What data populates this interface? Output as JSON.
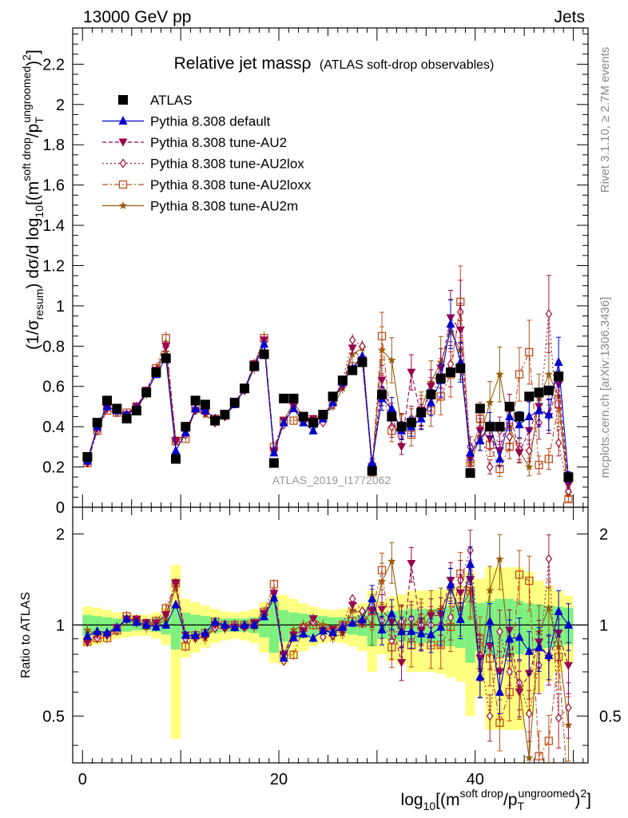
{
  "header": {
    "left": "13000 GeV pp",
    "right": "Jets"
  },
  "side_text": {
    "rivet": "Rivet 3.1.10, ≥ 2.7M events",
    "mcplots": "mcplots.cern.ch [arXiv:1306.3436]"
  },
  "colors": {
    "atlas": "#000000",
    "default": "#0000cc",
    "au2": "#99004d",
    "au2lox": "#a31d3a",
    "au2loxx": "#bf4d1a",
    "au2m": "#995c0d",
    "band_inner": "#7ff07f",
    "band_outer": "#ffff80"
  },
  "chart_data": {
    "type": "scatter",
    "title": "Relative jet massρ",
    "subtitle": "(ATLAS soft-drop observables)",
    "analysis_label": "ATLAS_2019_I1772062",
    "ylabel": "(1/σ_resum) dσ/d log10[(m^soft drop/pT^ungroomed)^2]",
    "xlabel": "log10[(m^soft drop/pT^ungroomed)^2]",
    "ratio_ylabel": "Ratio to ATLAS",
    "xlim": [
      -1,
      51.5
    ],
    "ylim": [
      0,
      2.38
    ],
    "ratio_ylim": [
      0.35,
      2.45
    ],
    "xticks": [
      0,
      20,
      40
    ],
    "yticks": [
      0,
      0.2,
      0.4,
      0.6,
      0.8,
      1,
      1.2,
      1.4,
      1.6,
      1.8,
      2,
      2.2
    ],
    "ratio_yticks": [
      0.5,
      1,
      2
    ],
    "legend_position": "top-left",
    "series": [
      {
        "name": "ATLAS",
        "marker": "square",
        "x": [
          0.5,
          1.5,
          2.5,
          3.5,
          4.5,
          5.5,
          6.5,
          7.5,
          8.5,
          9.5,
          10.5,
          11.5,
          12.5,
          13.5,
          14.5,
          15.5,
          16.5,
          17.5,
          18.5,
          19.5,
          20.5,
          21.5,
          22.5,
          23.5,
          24.5,
          25.5,
          26.5,
          27.5,
          28.5,
          29.5,
          30.5,
          31.5,
          32.5,
          33.5,
          34.5,
          35.5,
          36.5,
          37.5,
          38.5,
          39.5,
          40.5,
          41.5,
          42.5,
          43.5,
          44.5,
          45.5,
          46.5,
          47.5,
          48.5,
          49.5
        ],
        "y": [
          0.25,
          0.42,
          0.53,
          0.49,
          0.44,
          0.48,
          0.57,
          0.67,
          0.74,
          0.24,
          0.4,
          0.53,
          0.51,
          0.43,
          0.46,
          0.52,
          0.59,
          0.7,
          0.76,
          0.22,
          0.54,
          0.54,
          0.45,
          0.42,
          0.46,
          0.55,
          0.63,
          0.68,
          0.72,
          0.18,
          0.56,
          0.45,
          0.4,
          0.42,
          0.47,
          0.56,
          0.64,
          0.67,
          0.69,
          0.17,
          0.49,
          0.4,
          0.4,
          0.5,
          0.45,
          0.55,
          0.57,
          0.58,
          0.65,
          0.15
        ]
      },
      {
        "name": "Pythia 8.308 default",
        "marker": "triangle",
        "x": [
          0.5,
          1.5,
          2.5,
          3.5,
          4.5,
          5.5,
          6.5,
          7.5,
          8.5,
          9.5,
          10.5,
          11.5,
          12.5,
          13.5,
          14.5,
          15.5,
          16.5,
          17.5,
          18.5,
          19.5,
          20.5,
          21.5,
          22.5,
          23.5,
          24.5,
          25.5,
          26.5,
          27.5,
          28.5,
          29.5,
          30.5,
          31.5,
          32.5,
          33.5,
          34.5,
          35.5,
          36.5,
          37.5,
          38.5,
          39.5,
          40.5,
          41.5,
          42.5,
          43.5,
          44.5,
          45.5,
          46.5,
          47.5,
          48.5,
          49.5
        ],
        "y": [
          0.23,
          0.4,
          0.5,
          0.48,
          0.46,
          0.49,
          0.57,
          0.66,
          0.74,
          0.28,
          0.37,
          0.49,
          0.48,
          0.44,
          0.46,
          0.51,
          0.59,
          0.7,
          0.81,
          0.27,
          0.42,
          0.49,
          0.42,
          0.38,
          0.44,
          0.52,
          0.62,
          0.69,
          0.75,
          0.22,
          0.54,
          0.49,
          0.38,
          0.4,
          0.44,
          0.52,
          0.63,
          0.91,
          0.72,
          0.27,
          0.33,
          0.41,
          0.24,
          0.45,
          0.41,
          0.45,
          0.48,
          0.46,
          0.72,
          0.15
        ]
      },
      {
        "name": "Pythia 8.308 tune-AU2",
        "marker": "triangle-down",
        "x": [
          0.5,
          1.5,
          2.5,
          3.5,
          4.5,
          5.5,
          6.5,
          7.5,
          8.5,
          9.5,
          10.5,
          11.5,
          12.5,
          13.5,
          14.5,
          15.5,
          16.5,
          17.5,
          18.5,
          19.5,
          20.5,
          21.5,
          22.5,
          23.5,
          24.5,
          25.5,
          26.5,
          27.5,
          28.5,
          29.5,
          30.5,
          31.5,
          32.5,
          33.5,
          34.5,
          35.5,
          36.5,
          37.5,
          38.5,
          39.5,
          40.5,
          41.5,
          42.5,
          43.5,
          44.5,
          45.5,
          46.5,
          47.5,
          48.5,
          49.5
        ],
        "y": [
          0.22,
          0.39,
          0.49,
          0.48,
          0.46,
          0.5,
          0.58,
          0.68,
          0.8,
          0.33,
          0.37,
          0.48,
          0.47,
          0.43,
          0.45,
          0.51,
          0.58,
          0.71,
          0.83,
          0.28,
          0.43,
          0.5,
          0.43,
          0.44,
          0.44,
          0.53,
          0.6,
          0.79,
          0.73,
          0.2,
          0.63,
          0.46,
          0.3,
          0.67,
          0.45,
          0.6,
          0.69,
          0.94,
          0.88,
          0.24,
          0.38,
          0.34,
          0.28,
          0.48,
          0.27,
          0.38,
          0.5,
          0.45,
          0.61,
          0.11
        ]
      },
      {
        "name": "Pythia 8.308 tune-AU2lox",
        "marker": "diamond-open",
        "x": [
          0.5,
          1.5,
          2.5,
          3.5,
          4.5,
          5.5,
          6.5,
          7.5,
          8.5,
          9.5,
          10.5,
          11.5,
          12.5,
          13.5,
          14.5,
          15.5,
          16.5,
          17.5,
          18.5,
          19.5,
          20.5,
          21.5,
          22.5,
          23.5,
          24.5,
          25.5,
          26.5,
          27.5,
          28.5,
          29.5,
          30.5,
          31.5,
          32.5,
          33.5,
          34.5,
          35.5,
          36.5,
          37.5,
          38.5,
          39.5,
          40.5,
          41.5,
          42.5,
          43.5,
          44.5,
          45.5,
          46.5,
          47.5,
          48.5,
          49.5
        ],
        "y": [
          0.22,
          0.38,
          0.49,
          0.47,
          0.46,
          0.5,
          0.57,
          0.67,
          0.8,
          0.33,
          0.36,
          0.48,
          0.47,
          0.42,
          0.45,
          0.52,
          0.58,
          0.7,
          0.82,
          0.28,
          0.41,
          0.5,
          0.44,
          0.43,
          0.42,
          0.51,
          0.63,
          0.83,
          0.8,
          0.21,
          0.58,
          0.4,
          0.41,
          0.44,
          0.47,
          0.56,
          0.64,
          0.71,
          0.97,
          0.3,
          0.39,
          0.2,
          0.38,
          0.35,
          0.29,
          0.28,
          0.42,
          0.96,
          0.32,
          0.08
        ]
      },
      {
        "name": "Pythia 8.308 tune-AU2loxx",
        "marker": "square-open",
        "x": [
          0.5,
          1.5,
          2.5,
          3.5,
          4.5,
          5.5,
          6.5,
          7.5,
          8.5,
          9.5,
          10.5,
          11.5,
          12.5,
          13.5,
          14.5,
          15.5,
          16.5,
          17.5,
          18.5,
          19.5,
          20.5,
          21.5,
          22.5,
          23.5,
          24.5,
          25.5,
          26.5,
          27.5,
          28.5,
          29.5,
          30.5,
          31.5,
          32.5,
          33.5,
          34.5,
          35.5,
          36.5,
          37.5,
          38.5,
          39.5,
          40.5,
          41.5,
          42.5,
          43.5,
          44.5,
          45.5,
          46.5,
          47.5,
          48.5,
          49.5
        ],
        "y": [
          0.22,
          0.38,
          0.48,
          0.47,
          0.47,
          0.5,
          0.57,
          0.69,
          0.84,
          0.33,
          0.34,
          0.49,
          0.48,
          0.44,
          0.46,
          0.52,
          0.59,
          0.71,
          0.84,
          0.3,
          0.43,
          0.43,
          0.44,
          0.42,
          0.45,
          0.53,
          0.63,
          0.7,
          0.73,
          0.2,
          0.85,
          0.38,
          0.4,
          0.36,
          0.48,
          0.48,
          0.55,
          0.66,
          1.02,
          0.22,
          0.44,
          0.31,
          0.19,
          0.3,
          0.66,
          0.77,
          0.21,
          0.24,
          0.51,
          0.04
        ]
      },
      {
        "name": "Pythia 8.308 tune-AU2m",
        "marker": "star",
        "x": [
          0.5,
          1.5,
          2.5,
          3.5,
          4.5,
          5.5,
          6.5,
          7.5,
          8.5,
          9.5,
          10.5,
          11.5,
          12.5,
          13.5,
          14.5,
          15.5,
          16.5,
          17.5,
          18.5,
          19.5,
          20.5,
          21.5,
          22.5,
          23.5,
          24.5,
          25.5,
          26.5,
          27.5,
          28.5,
          29.5,
          30.5,
          31.5,
          32.5,
          33.5,
          34.5,
          35.5,
          36.5,
          37.5,
          38.5,
          39.5,
          40.5,
          41.5,
          42.5,
          43.5,
          44.5,
          45.5,
          46.5,
          47.5,
          48.5,
          49.5
        ],
        "y": [
          0.24,
          0.39,
          0.5,
          0.48,
          0.46,
          0.49,
          0.56,
          0.67,
          0.77,
          0.32,
          0.36,
          0.48,
          0.46,
          0.42,
          0.45,
          0.52,
          0.58,
          0.69,
          0.82,
          0.27,
          0.43,
          0.52,
          0.45,
          0.44,
          0.46,
          0.5,
          0.59,
          0.76,
          0.79,
          0.18,
          0.78,
          0.73,
          0.4,
          0.42,
          0.49,
          0.62,
          0.72,
          0.87,
          0.78,
          0.22,
          0.35,
          0.52,
          0.66,
          0.4,
          0.28,
          0.2,
          0.54,
          0.66,
          0.55,
          0.07
        ]
      }
    ],
    "ratio_band": {
      "inner_half_width": [
        0.08,
        0.07,
        0.06,
        0.05,
        0.05,
        0.04,
        0.04,
        0.05,
        0.07,
        0.17,
        0.1,
        0.08,
        0.07,
        0.06,
        0.05,
        0.05,
        0.05,
        0.06,
        0.09,
        0.19,
        0.12,
        0.1,
        0.09,
        0.08,
        0.07,
        0.06,
        0.06,
        0.07,
        0.08,
        0.15,
        0.1,
        0.11,
        0.12,
        0.13,
        0.13,
        0.13,
        0.14,
        0.15,
        0.16,
        0.25,
        0.18,
        0.2,
        0.22,
        0.22,
        0.2,
        0.18,
        0.17,
        0.16,
        0.15,
        0.14
      ],
      "outer_half_width": [
        0.15,
        0.14,
        0.12,
        0.1,
        0.09,
        0.08,
        0.08,
        0.1,
        0.14,
        0.58,
        0.22,
        0.19,
        0.16,
        0.13,
        0.11,
        0.1,
        0.11,
        0.13,
        0.19,
        0.25,
        0.26,
        0.22,
        0.18,
        0.15,
        0.13,
        0.12,
        0.13,
        0.15,
        0.18,
        0.3,
        0.2,
        0.24,
        0.26,
        0.3,
        0.3,
        0.3,
        0.31,
        0.33,
        0.35,
        0.5,
        0.42,
        0.55,
        0.55,
        0.55,
        0.55,
        0.5,
        0.4,
        0.35,
        0.3,
        0.25
      ]
    }
  }
}
